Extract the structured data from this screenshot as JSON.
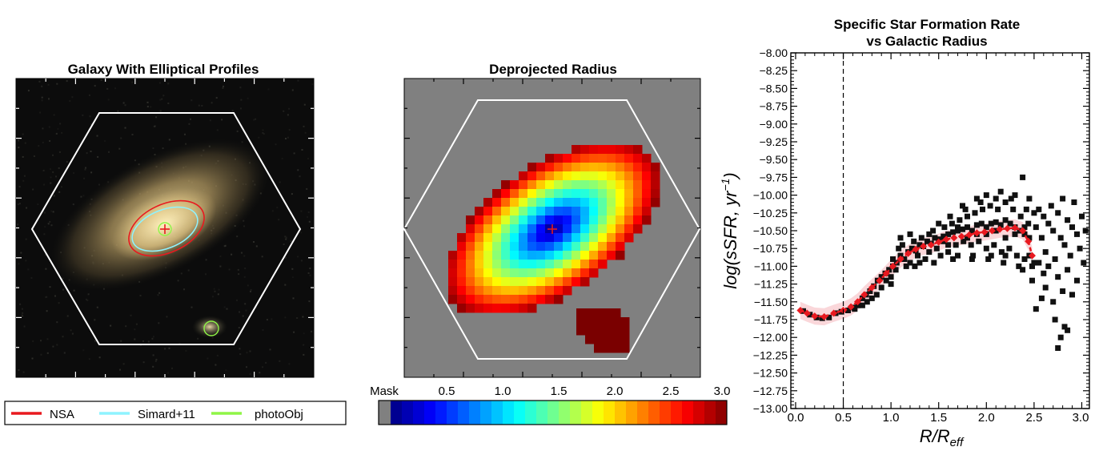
{
  "panels": {
    "galaxy": {
      "title": "Galaxy With Elliptical Profiles",
      "legend": [
        {
          "label": "NSA",
          "color": "#e8191f"
        },
        {
          "label": "Simard+11",
          "color": "#8ef3ff"
        },
        {
          "label": "photoObj",
          "color": "#8ff547"
        }
      ]
    },
    "radius": {
      "title": "Deprojected Radius",
      "colorbar": {
        "mask_label": "Mask",
        "ticks": [
          "0.5",
          "1.0",
          "1.5",
          "2.0",
          "2.5",
          "3.0"
        ],
        "range": [
          0,
          3.0
        ]
      }
    }
  },
  "chart_data": {
    "type": "scatter",
    "title_lines": [
      "Specific Star Formation Rate",
      "vs Galactic Radius"
    ],
    "xlabel_main": "R/R",
    "xlabel_sub": "eff",
    "ylabel_main": "log(sSFR, yr",
    "ylabel_sup": "−1",
    "ylabel_close": ")",
    "xlim": [
      -0.05,
      3.08
    ],
    "ylim": [
      -13.0,
      -8.0
    ],
    "xticks": [
      "0.0",
      "0.5",
      "1.0",
      "1.5",
      "2.0",
      "2.5",
      "3.0"
    ],
    "xtick_values": [
      0,
      0.5,
      1.0,
      1.5,
      2.0,
      2.5,
      3.0
    ],
    "yticks": [
      "−8.00",
      "−8.25",
      "−8.50",
      "−8.75",
      "−9.00",
      "−9.25",
      "−9.50",
      "−9.75",
      "−10.00",
      "−10.25",
      "−10.50",
      "−10.75",
      "−11.00",
      "−11.25",
      "−11.50",
      "−11.75",
      "−12.00",
      "−12.25",
      "−12.50",
      "−12.75",
      "−13.00"
    ],
    "ytick_values": [
      -8.0,
      -8.25,
      -8.5,
      -8.75,
      -9.0,
      -9.25,
      -9.5,
      -9.75,
      -10.0,
      -10.25,
      -10.5,
      -10.75,
      -11.0,
      -11.25,
      -11.5,
      -11.75,
      -12.0,
      -12.25,
      -12.5,
      -12.75,
      -13.0
    ],
    "vline_x": 0.5,
    "series": [
      {
        "marker": "square",
        "color": "#111111",
        "points": [
          [
            0.08,
            -11.63
          ],
          [
            0.15,
            -11.68
          ],
          [
            0.22,
            -11.72
          ],
          [
            0.28,
            -11.73
          ],
          [
            0.35,
            -11.72
          ],
          [
            0.42,
            -11.66
          ],
          [
            0.48,
            -11.64
          ],
          [
            0.55,
            -11.62
          ],
          [
            0.6,
            -11.58
          ],
          [
            0.65,
            -11.55
          ],
          [
            0.7,
            -11.45
          ],
          [
            0.74,
            -11.4
          ],
          [
            0.78,
            -11.35
          ],
          [
            0.82,
            -11.28
          ],
          [
            0.86,
            -11.2
          ],
          [
            0.9,
            -11.15
          ],
          [
            0.94,
            -11.1
          ],
          [
            0.98,
            -11.05
          ],
          [
            1.02,
            -11.0
          ],
          [
            1.06,
            -10.95
          ],
          [
            1.1,
            -10.85
          ],
          [
            1.14,
            -10.9
          ],
          [
            1.18,
            -10.8
          ],
          [
            1.22,
            -10.75
          ],
          [
            1.26,
            -10.78
          ],
          [
            1.3,
            -10.7
          ],
          [
            1.34,
            -10.72
          ],
          [
            1.38,
            -10.65
          ],
          [
            1.42,
            -10.68
          ],
          [
            1.46,
            -10.6
          ],
          [
            1.5,
            -10.62
          ],
          [
            1.55,
            -10.58
          ],
          [
            1.6,
            -10.55
          ],
          [
            1.65,
            -10.52
          ],
          [
            1.7,
            -10.5
          ],
          [
            1.75,
            -10.48
          ],
          [
            1.8,
            -10.45
          ],
          [
            1.85,
            -10.5
          ],
          [
            1.9,
            -10.42
          ],
          [
            1.95,
            -10.4
          ],
          [
            2.0,
            -10.45
          ],
          [
            2.05,
            -10.4
          ],
          [
            2.1,
            -10.38
          ],
          [
            2.15,
            -10.42
          ],
          [
            2.2,
            -10.35
          ],
          [
            2.25,
            -10.4
          ],
          [
            2.3,
            -10.45
          ],
          [
            2.35,
            -10.5
          ],
          [
            2.4,
            -10.55
          ],
          [
            2.45,
            -10.6
          ],
          [
            0.9,
            -11.3
          ],
          [
            0.95,
            -11.2
          ],
          [
            1.0,
            -11.15
          ],
          [
            1.05,
            -11.05
          ],
          [
            1.08,
            -10.75
          ],
          [
            1.12,
            -10.7
          ],
          [
            1.16,
            -11.0
          ],
          [
            1.2,
            -10.95
          ],
          [
            1.24,
            -10.65
          ],
          [
            1.28,
            -10.85
          ],
          [
            1.32,
            -10.6
          ],
          [
            1.36,
            -10.9
          ],
          [
            1.4,
            -10.8
          ],
          [
            1.44,
            -10.5
          ],
          [
            1.48,
            -10.75
          ],
          [
            1.52,
            -10.85
          ],
          [
            1.56,
            -10.45
          ],
          [
            1.6,
            -10.8
          ],
          [
            1.64,
            -10.4
          ],
          [
            1.68,
            -10.7
          ],
          [
            1.72,
            -10.35
          ],
          [
            1.76,
            -10.65
          ],
          [
            1.8,
            -10.3
          ],
          [
            1.84,
            -10.7
          ],
          [
            1.88,
            -10.25
          ],
          [
            1.92,
            -10.65
          ],
          [
            1.96,
            -10.2
          ],
          [
            2.0,
            -10.75
          ],
          [
            2.04,
            -10.15
          ],
          [
            2.08,
            -10.7
          ],
          [
            2.12,
            -10.2
          ],
          [
            2.16,
            -10.8
          ],
          [
            2.2,
            -10.1
          ],
          [
            2.24,
            -10.75
          ],
          [
            2.28,
            -10.2
          ],
          [
            2.32,
            -10.85
          ],
          [
            2.36,
            -10.3
          ],
          [
            2.4,
            -10.9
          ],
          [
            2.44,
            -10.4
          ],
          [
            2.48,
            -11.0
          ],
          [
            1.55,
            -10.65
          ],
          [
            1.62,
            -10.3
          ],
          [
            1.7,
            -10.85
          ],
          [
            1.78,
            -10.2
          ],
          [
            1.86,
            -10.85
          ],
          [
            1.94,
            -10.1
          ],
          [
            2.02,
            -10.9
          ],
          [
            2.1,
            -10.05
          ],
          [
            2.18,
            -10.95
          ],
          [
            2.26,
            -10.05
          ],
          [
            2.34,
            -11.0
          ],
          [
            2.42,
            -10.2
          ],
          [
            2.48,
            -11.2
          ],
          [
            2.52,
            -10.45
          ],
          [
            2.55,
            -10.2
          ],
          [
            2.58,
            -10.6
          ],
          [
            2.6,
            -10.3
          ],
          [
            2.62,
            -10.8
          ],
          [
            2.65,
            -10.4
          ],
          [
            2.68,
            -10.15
          ],
          [
            2.7,
            -10.5
          ],
          [
            2.72,
            -10.9
          ],
          [
            2.75,
            -10.25
          ],
          [
            2.78,
            -10.6
          ],
          [
            2.8,
            -10.05
          ],
          [
            2.82,
            -10.7
          ],
          [
            2.85,
            -10.35
          ],
          [
            2.88,
            -10.85
          ],
          [
            2.9,
            -10.45
          ],
          [
            2.92,
            -10.1
          ],
          [
            2.95,
            -10.55
          ],
          [
            2.98,
            -10.75
          ],
          [
            3.0,
            -10.3
          ],
          [
            3.02,
            -10.95
          ],
          [
            3.04,
            -10.5
          ],
          [
            2.55,
            -10.95
          ],
          [
            2.6,
            -11.1
          ],
          [
            2.65,
            -11.0
          ],
          [
            2.75,
            -11.15
          ],
          [
            2.85,
            -11.05
          ],
          [
            2.95,
            -11.2
          ],
          [
            2.58,
            -11.45
          ],
          [
            2.62,
            -11.3
          ],
          [
            2.7,
            -11.5
          ],
          [
            2.52,
            -11.6
          ],
          [
            2.8,
            -11.35
          ],
          [
            2.9,
            -11.4
          ],
          [
            2.78,
            -12.0
          ],
          [
            2.82,
            -11.85
          ],
          [
            2.85,
            -11.9
          ],
          [
            2.75,
            -12.15
          ],
          [
            2.72,
            -11.75
          ],
          [
            2.38,
            -9.75
          ],
          [
            2.0,
            -10.0
          ],
          [
            2.15,
            -9.95
          ],
          [
            2.3,
            -10.0
          ],
          [
            1.9,
            -10.05
          ],
          [
            1.75,
            -10.15
          ],
          [
            2.45,
            -10.05
          ],
          [
            2.5,
            -10.25
          ],
          [
            0.85,
            -11.4
          ],
          [
            0.8,
            -11.45
          ],
          [
            0.75,
            -11.5
          ],
          [
            0.7,
            -11.55
          ],
          [
            0.62,
            -11.6
          ],
          [
            1.02,
            -10.9
          ],
          [
            1.0,
            -11.25
          ],
          [
            1.1,
            -10.6
          ],
          [
            1.2,
            -10.55
          ],
          [
            1.3,
            -10.95
          ],
          [
            1.4,
            -10.55
          ],
          [
            1.5,
            -10.4
          ],
          [
            1.6,
            -10.7
          ],
          [
            1.7,
            -10.45
          ],
          [
            1.8,
            -10.6
          ],
          [
            1.9,
            -10.55
          ],
          [
            2.0,
            -10.55
          ],
          [
            2.1,
            -10.5
          ],
          [
            2.2,
            -10.6
          ],
          [
            2.3,
            -10.55
          ],
          [
            2.4,
            -10.45
          ],
          [
            2.45,
            -10.85
          ],
          [
            2.5,
            -10.95
          ],
          [
            2.38,
            -11.05
          ],
          [
            2.2,
            -10.85
          ],
          [
            2.05,
            -10.85
          ],
          [
            1.85,
            -10.9
          ],
          [
            1.65,
            -10.9
          ],
          [
            1.45,
            -10.95
          ],
          [
            1.25,
            -11.0
          ]
        ]
      },
      {
        "marker": "diamond-line",
        "color": "#e8191f",
        "points": [
          [
            0.05,
            -11.62
          ],
          [
            0.12,
            -11.66
          ],
          [
            0.2,
            -11.7
          ],
          [
            0.3,
            -11.71
          ],
          [
            0.4,
            -11.66
          ],
          [
            0.5,
            -11.62
          ],
          [
            0.58,
            -11.57
          ],
          [
            0.65,
            -11.5
          ],
          [
            0.72,
            -11.4
          ],
          [
            0.8,
            -11.3
          ],
          [
            0.88,
            -11.2
          ],
          [
            0.95,
            -11.1
          ],
          [
            1.02,
            -11.0
          ],
          [
            1.1,
            -10.9
          ],
          [
            1.18,
            -10.82
          ],
          [
            1.26,
            -10.76
          ],
          [
            1.34,
            -10.72
          ],
          [
            1.42,
            -10.7
          ],
          [
            1.5,
            -10.66
          ],
          [
            1.58,
            -10.62
          ],
          [
            1.66,
            -10.6
          ],
          [
            1.74,
            -10.58
          ],
          [
            1.82,
            -10.56
          ],
          [
            1.9,
            -10.53
          ],
          [
            1.98,
            -10.52
          ],
          [
            2.06,
            -10.5
          ],
          [
            2.14,
            -10.48
          ],
          [
            2.22,
            -10.47
          ],
          [
            2.3,
            -10.46
          ],
          [
            2.38,
            -10.5
          ],
          [
            2.44,
            -10.65
          ],
          [
            2.48,
            -10.85
          ]
        ]
      }
    ]
  }
}
